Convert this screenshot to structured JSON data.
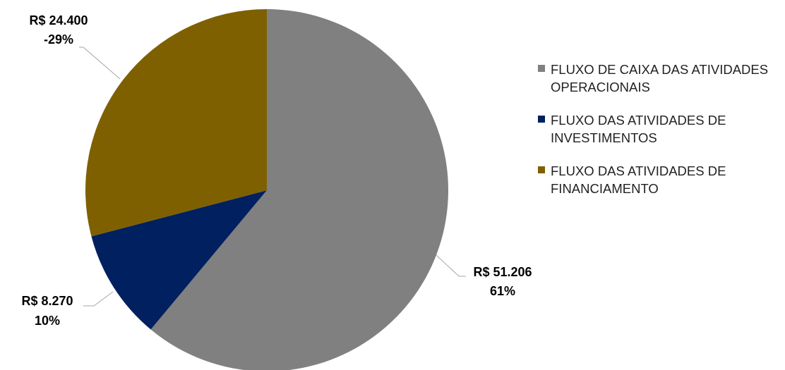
{
  "chart_data": {
    "type": "pie",
    "categories": [
      "FLUXO DE CAIXA DAS ATIVIDADES OPERACIONAIS",
      "FLUXO DAS ATIVIDADES DE INVESTIMENTOS",
      "FLUXO DAS ATIVIDADES DE FINANCIAMENTO"
    ],
    "values": [
      51206,
      8270,
      24400
    ],
    "value_labels": [
      "R$ 51.206",
      "R$ 8.270",
      "R$ 24.400"
    ],
    "percent_labels": [
      "61%",
      "10%",
      "-29%"
    ],
    "colors": [
      "#808080",
      "#002060",
      "#7f6000"
    ]
  }
}
